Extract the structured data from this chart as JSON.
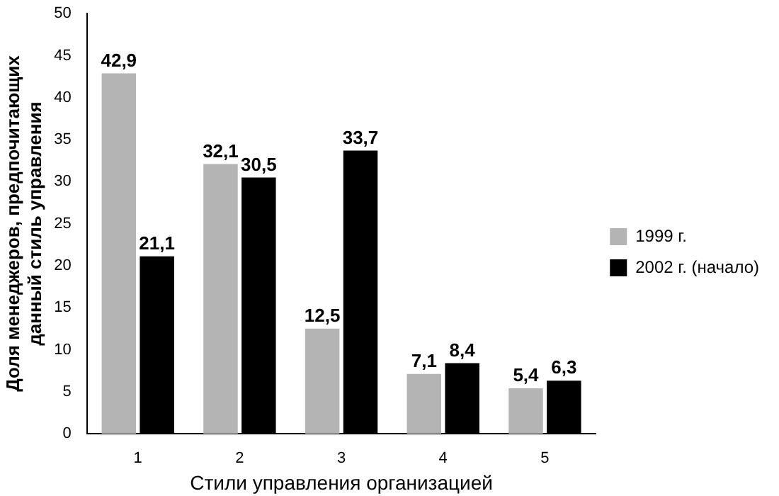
{
  "chart_data": {
    "type": "bar",
    "xlabel": "Стили управления организацией",
    "ylabel": "Доля менеджеров, предпочитающих данный стиль управления",
    "categories": [
      "1",
      "2",
      "3",
      "4",
      "5"
    ],
    "series": [
      {
        "name": "1999 г.",
        "color": "#b4b4b4",
        "values": [
          42.9,
          32.1,
          12.5,
          7.1,
          5.4
        ],
        "value_labels": [
          "42,9",
          "32,1",
          "12,5",
          "7,1",
          "5,4"
        ]
      },
      {
        "name": "2002 г. (начало)",
        "color": "#000000",
        "values": [
          21.1,
          30.5,
          33.7,
          8.4,
          6.3
        ],
        "value_labels": [
          "21,1",
          "30,5",
          "33,7",
          "8,4",
          "6,3"
        ]
      }
    ],
    "ylim": [
      0,
      50
    ],
    "yticks": [
      0,
      5,
      10,
      15,
      20,
      25,
      30,
      35,
      40,
      45,
      50
    ],
    "grid": false,
    "legend": "right"
  }
}
